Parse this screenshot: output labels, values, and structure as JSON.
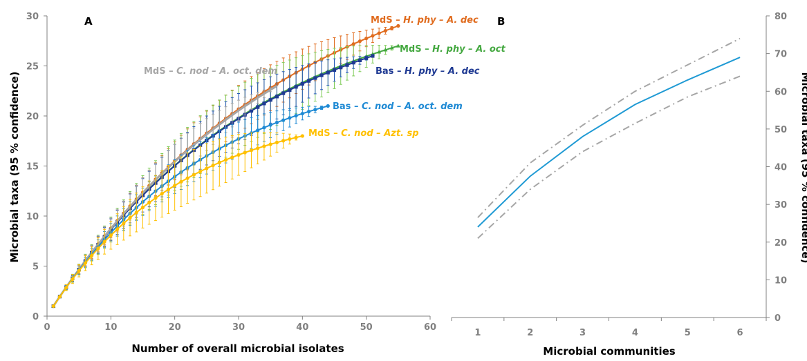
{
  "chart_data": [
    {
      "panel_label": "A",
      "type": "line",
      "xlabel": "Number of overall microbial isolates",
      "ylabel": "Microbial taxa (95 % confidence)",
      "xlim": [
        0,
        60
      ],
      "ylim": [
        0,
        30
      ],
      "xticks": [
        "0",
        "10",
        "20",
        "30",
        "40",
        "50",
        "60"
      ],
      "yticks": [
        "0",
        "5",
        "10",
        "15",
        "20",
        "25",
        "30"
      ],
      "error_bars": true,
      "series": [
        {
          "name": "MdS - H. phy - A. dec",
          "parts": [
            {
              "t": "MdS – "
            },
            {
              "t": "H. phy – A. dec",
              "i": true
            }
          ],
          "color": "#e06c1f",
          "marker": "circle",
          "n_max": 55,
          "final": 29.0,
          "err_max": 3.0
        },
        {
          "name": "MdS - H. phy - A. oct",
          "parts": [
            {
              "t": "MdS – "
            },
            {
              "t": "H. phy – A. oct",
              "i": true
            }
          ],
          "color": "#44a840",
          "err_color": "#7fcc58",
          "marker": "triangle",
          "n_max": 55,
          "final": 27.0,
          "err_max": 4.0
        },
        {
          "name": "Bas - H. phy - A. dec",
          "parts": [
            {
              "t": "Bas – "
            },
            {
              "t": "H. phy – A. dec",
              "i": true
            }
          ],
          "color": "#1f3a93",
          "err_color": "#2457b8",
          "marker": "square",
          "n_max": 51,
          "final": 26.0,
          "err_max": 3.2
        },
        {
          "name": "MdS - C. nod - A. oct. dem",
          "parts": [
            {
              "t": "MdS – "
            },
            {
              "t": "C. nod – A. oct. dem",
              "i": true
            }
          ],
          "color": "#a6a6a6",
          "marker": "none",
          "n_max": 36,
          "final": 23.0,
          "err_max": 2.2
        },
        {
          "name": "Bas - C. nod - A. oct. dem",
          "parts": [
            {
              "t": "Bas – "
            },
            {
              "t": "C. nod – A. oct. dem",
              "i": true
            }
          ],
          "color": "#1f8ad4",
          "marker": "circle",
          "n_max": 44,
          "final": 21.0,
          "err_max": 2.3
        },
        {
          "name": "MdS - C. nod - Azt. sp",
          "parts": [
            {
              "t": "MdS – "
            },
            {
              "t": "C. nod – Azt. sp",
              "i": true
            }
          ],
          "color": "#ffc000",
          "marker": "circle",
          "n_max": 40,
          "final": 18.0,
          "err_max": 3.2
        }
      ]
    },
    {
      "panel_label": "B",
      "type": "line",
      "xlabel": "Microbial communities",
      "ylabel": "Microbial taxa (95 % confidence)",
      "categories": [
        "1",
        "2",
        "3",
        "4",
        "5",
        "6"
      ],
      "ylim": [
        0,
        80
      ],
      "yticks": [
        "0",
        "10",
        "20",
        "30",
        "40",
        "50",
        "60",
        "70",
        "80"
      ],
      "series": [
        {
          "role": "estimate",
          "color": "#1f9ad4",
          "style": "solid",
          "values": [
            24,
            37.5,
            48,
            56.5,
            63,
            69
          ]
        },
        {
          "role": "upper",
          "color": "#a6a6a6",
          "style": "dashdot",
          "values": [
            26.5,
            41,
            51,
            60,
            67,
            74
          ]
        },
        {
          "role": "lower",
          "color": "#a6a6a6",
          "style": "dashdot",
          "values": [
            21,
            34,
            44,
            51.5,
            58.5,
            64
          ]
        }
      ]
    }
  ]
}
